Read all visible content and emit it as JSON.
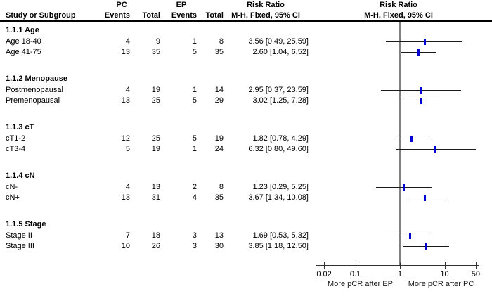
{
  "header": {
    "study_col": "Study or Subgroup",
    "pc_group_label": "PC",
    "ep_group_label": "EP",
    "events_label": "Events",
    "total_label": "Total",
    "rr_text_col_title": "Risk Ratio",
    "rr_text_col_sub": "M-H, Fixed, 95% CI",
    "rr_plot_col_title": "Risk Ratio",
    "rr_plot_col_sub": "M-H, Fixed, 95% CI"
  },
  "chart_data": {
    "type": "scatter",
    "subtype": "forest-plot",
    "effect_measure": "Risk Ratio",
    "method": "M-H, Fixed, 95% CI",
    "xscale": "log",
    "xlim": [
      0.02,
      50
    ],
    "x_ticks": [
      0.02,
      0.1,
      1,
      10,
      50
    ],
    "x_tick_labels": [
      "0.02",
      "0.1",
      "1",
      "10",
      "50"
    ],
    "xlabel_left": "More pCR after EP",
    "xlabel_right": "More pCR after PC",
    "subgroups": [
      {
        "name": "1.1.1 Age",
        "studies": [
          {
            "label": "Age 18-40",
            "pc_events": "4",
            "pc_total": "9",
            "ep_events": "1",
            "ep_total": "8",
            "estimate": 3.56,
            "ci_low": 0.49,
            "ci_high": 25.59,
            "ci_label": "3.56 [0.49, 25.59]"
          },
          {
            "label": "Age 41-75",
            "pc_events": "13",
            "pc_total": "35",
            "ep_events": "5",
            "ep_total": "35",
            "estimate": 2.6,
            "ci_low": 1.04,
            "ci_high": 6.52,
            "ci_label": "2.60 [1.04, 6.52]"
          }
        ]
      },
      {
        "name": "1.1.2 Menopause",
        "studies": [
          {
            "label": "Postmenopausal",
            "pc_events": "4",
            "pc_total": "19",
            "ep_events": "1",
            "ep_total": "14",
            "estimate": 2.95,
            "ci_low": 0.37,
            "ci_high": 23.59,
            "ci_label": "2.95 [0.37, 23.59]"
          },
          {
            "label": "Premenopausal",
            "pc_events": "13",
            "pc_total": "25",
            "ep_events": "5",
            "ep_total": "29",
            "estimate": 3.02,
            "ci_low": 1.25,
            "ci_high": 7.28,
            "ci_label": "3.02 [1.25, 7.28]"
          }
        ]
      },
      {
        "name": "1.1.3 cT",
        "studies": [
          {
            "label": "cT1-2",
            "pc_events": "12",
            "pc_total": "25",
            "ep_events": "5",
            "ep_total": "19",
            "estimate": 1.82,
            "ci_low": 0.78,
            "ci_high": 4.29,
            "ci_label": "1.82 [0.78, 4.29]"
          },
          {
            "label": "cT3-4",
            "pc_events": "5",
            "pc_total": "19",
            "ep_events": "1",
            "ep_total": "24",
            "estimate": 6.32,
            "ci_low": 0.8,
            "ci_high": 49.6,
            "ci_label": "6.32 [0.80, 49.60]"
          }
        ]
      },
      {
        "name": "1.1.4 cN",
        "studies": [
          {
            "label": "cN-",
            "pc_events": "4",
            "pc_total": "13",
            "ep_events": "2",
            "ep_total": "8",
            "estimate": 1.23,
            "ci_low": 0.29,
            "ci_high": 5.25,
            "ci_label": "1.23 [0.29, 5.25]"
          },
          {
            "label": "cN+",
            "pc_events": "13",
            "pc_total": "31",
            "ep_events": "4",
            "ep_total": "35",
            "estimate": 3.67,
            "ci_low": 1.34,
            "ci_high": 10.08,
            "ci_label": "3.67 [1.34, 10.08]"
          }
        ]
      },
      {
        "name": "1.1.5 Stage",
        "studies": [
          {
            "label": "Stage II",
            "pc_events": "7",
            "pc_total": "18",
            "ep_events": "3",
            "ep_total": "13",
            "estimate": 1.69,
            "ci_low": 0.53,
            "ci_high": 5.32,
            "ci_label": "1.69 [0.53, 5.32]"
          },
          {
            "label": "Stage III",
            "pc_events": "10",
            "pc_total": "26",
            "ep_events": "3",
            "ep_total": "30",
            "estimate": 3.85,
            "ci_low": 1.18,
            "ci_high": 12.5,
            "ci_label": "3.85 [1.18, 12.50]"
          }
        ]
      }
    ]
  },
  "colors": {
    "marker_blue": "#0000d4",
    "ci_line": "#1a1a1a",
    "no_effect_line": "#808080",
    "text": "#000000"
  }
}
